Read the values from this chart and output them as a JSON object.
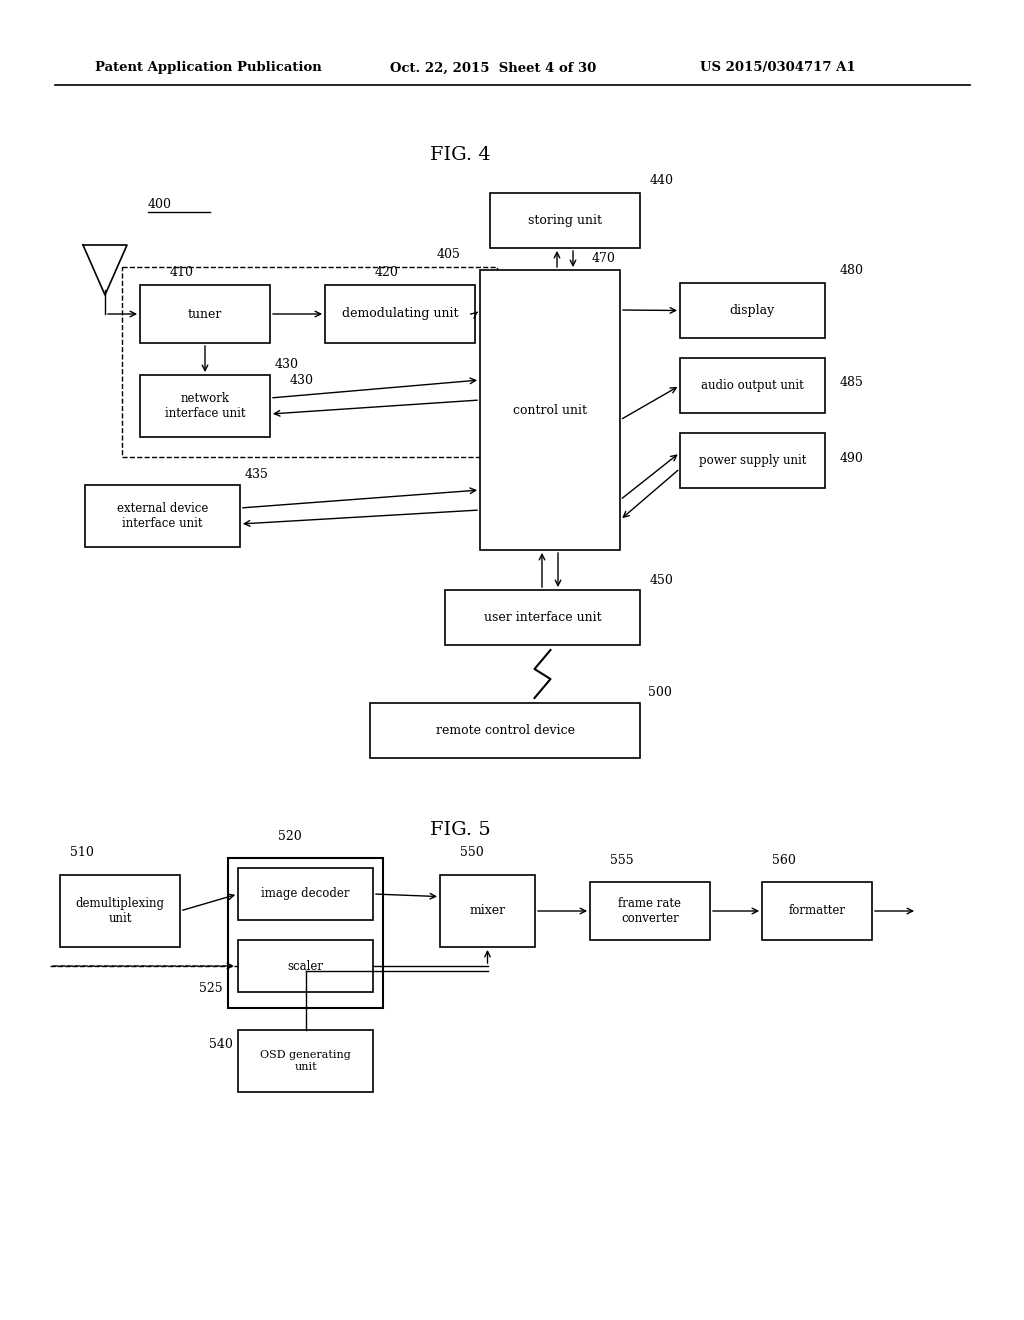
{
  "bg_color": "#ffffff",
  "header_left": "Patent Application Publication",
  "header_mid": "Oct. 22, 2015  Sheet 4 of 30",
  "header_right": "US 2015/0304717 A1",
  "fig4_title": "FIG. 4",
  "fig5_title": "FIG. 5"
}
